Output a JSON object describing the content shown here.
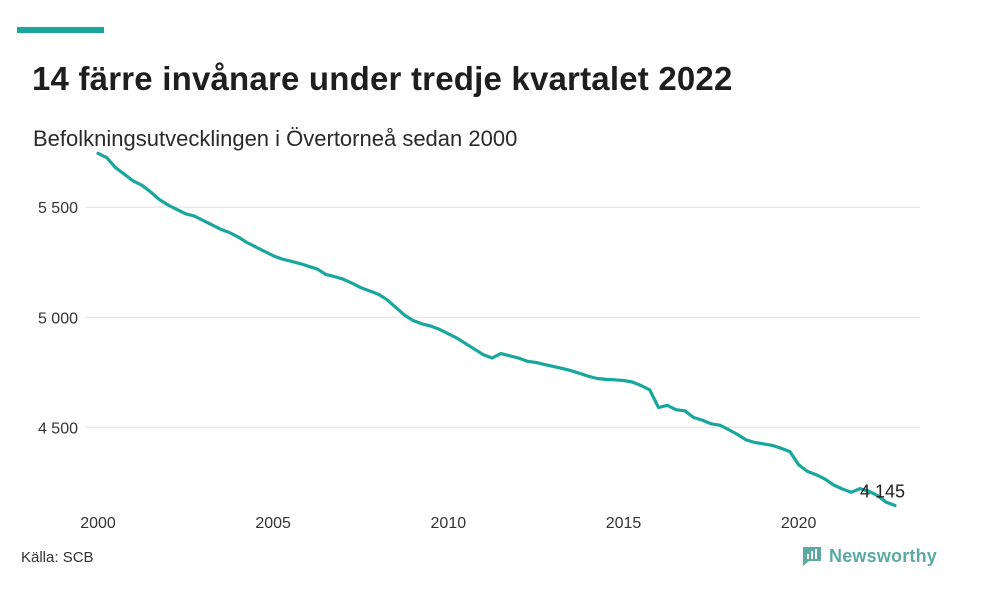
{
  "title": "14 färre invånare under tredje kvartalet 2022",
  "subtitle": "Befolkningsutvecklingen i Övertorneå sedan 2000",
  "source": "Källa: SCB",
  "brand": {
    "name": "Newsworthy",
    "icon": "newsworthy-logo-icon"
  },
  "colors": {
    "accent": "#19a69c",
    "line": "#19a69c",
    "grid": "#e6e6e6",
    "brand": "#5aa9a3"
  },
  "chart_data": {
    "type": "line",
    "title": "14 färre invånare under tredje kvartalet 2022",
    "subtitle": "Befolkningsutvecklingen i Övertorneå sedan 2000",
    "xlim": [
      2000,
      2022.75
    ],
    "ylim": [
      4170,
      5760
    ],
    "x_ticks": [
      2000,
      2005,
      2010,
      2015,
      2020
    ],
    "x_tick_labels": [
      "2000",
      "2005",
      "2010",
      "2015",
      "2020"
    ],
    "y_ticks": [
      4500,
      5000,
      5500
    ],
    "y_tick_labels": [
      "4 500",
      "5 000",
      "5 500"
    ],
    "grid": "horizontal",
    "end_label": "4 145",
    "series": [
      {
        "x": [
          2000.0,
          2000.25,
          2000.5,
          2000.75,
          2001.0,
          2001.25,
          2001.5,
          2001.75,
          2002.0,
          2002.25,
          2002.5,
          2002.75,
          2003.0,
          2003.25,
          2003.5,
          2003.75,
          2004.0,
          2004.25,
          2004.5,
          2004.75,
          2005.0,
          2005.25,
          2005.5,
          2005.75,
          2006.0,
          2006.25,
          2006.5,
          2006.75,
          2007.0,
          2007.25,
          2007.5,
          2007.75,
          2008.0,
          2008.25,
          2008.5,
          2008.75,
          2009.0,
          2009.25,
          2009.5,
          2009.75,
          2010.0,
          2010.25,
          2010.5,
          2010.75,
          2011.0,
          2011.25,
          2011.5,
          2011.75,
          2012.0,
          2012.25,
          2012.5,
          2012.75,
          2013.0,
          2013.25,
          2013.5,
          2013.75,
          2014.0,
          2014.25,
          2014.5,
          2014.75,
          2015.0,
          2015.25,
          2015.5,
          2015.75,
          2016.0,
          2016.25,
          2016.5,
          2016.75,
          2017.0,
          2017.25,
          2017.5,
          2017.75,
          2018.0,
          2018.25,
          2018.5,
          2018.75,
          2019.0,
          2019.25,
          2019.5,
          2019.75,
          2020.0,
          2020.25,
          2020.5,
          2020.75,
          2021.0,
          2021.25,
          2021.5,
          2021.75,
          2022.0,
          2022.25,
          2022.5,
          2022.75
        ],
        "values": [
          5745,
          5725,
          5680,
          5650,
          5620,
          5600,
          5570,
          5535,
          5510,
          5490,
          5470,
          5460,
          5440,
          5420,
          5400,
          5385,
          5365,
          5340,
          5320,
          5300,
          5280,
          5265,
          5255,
          5245,
          5232,
          5220,
          5195,
          5185,
          5173,
          5155,
          5135,
          5120,
          5105,
          5080,
          5045,
          5010,
          4985,
          4970,
          4960,
          4945,
          4925,
          4905,
          4880,
          4855,
          4830,
          4815,
          4835,
          4825,
          4815,
          4800,
          4795,
          4785,
          4777,
          4768,
          4758,
          4745,
          4732,
          4722,
          4718,
          4716,
          4713,
          4706,
          4690,
          4670,
          4590,
          4600,
          4580,
          4575,
          4545,
          4533,
          4516,
          4510,
          4490,
          4468,
          4443,
          4431,
          4425,
          4418,
          4405,
          4390,
          4330,
          4300,
          4285,
          4265,
          4238,
          4220,
          4205,
          4222,
          4210,
          4190,
          4160,
          4145
        ]
      }
    ]
  }
}
